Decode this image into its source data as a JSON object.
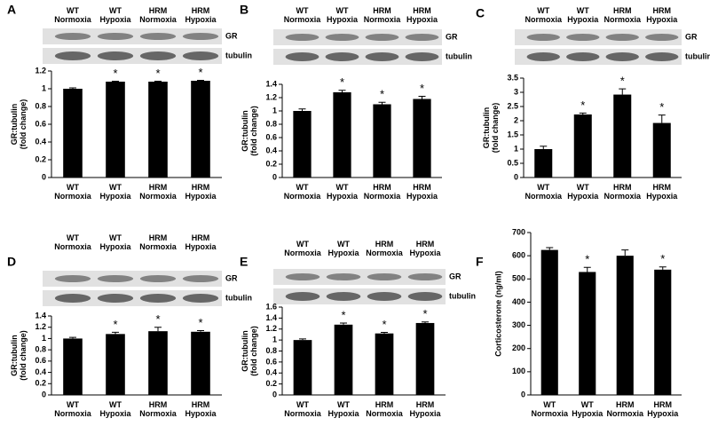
{
  "chart_data": [
    {
      "type": "bar",
      "label": "A",
      "blot_labels": [
        "GR",
        "tubulin"
      ],
      "y_label": "GR:tubulin\n(fold change)",
      "categories": [
        "WT\nNormoxia",
        "WT\nHypoxia",
        "HRM\nNormoxia",
        "HRM\nHypoxia"
      ],
      "values": [
        1.0,
        1.08,
        1.08,
        1.09
      ],
      "errors": [
        0.01,
        0.005,
        0.005,
        0.005
      ],
      "markers": [
        null,
        "*",
        "*",
        "*"
      ],
      "color": "#000000",
      "ylim": [
        0,
        1.2
      ],
      "yticks": [
        0,
        0.2,
        0.4,
        0.6,
        0.8,
        1,
        1.2
      ]
    },
    {
      "type": "bar",
      "label": "B",
      "blot_labels": [
        "GR",
        "tubulin"
      ],
      "y_label": "GR:tubulin\n(fold change)",
      "categories": [
        "WT\nNormoxia",
        "WT\nHypoxia",
        "HRM\nNormoxia",
        "HRM\nHypoxia"
      ],
      "values": [
        1.0,
        1.28,
        1.1,
        1.18
      ],
      "errors": [
        0.03,
        0.03,
        0.03,
        0.04
      ],
      "markers": [
        null,
        "*",
        "*",
        "*"
      ],
      "color": "#000000",
      "ylim": [
        0,
        1.4
      ],
      "yticks": [
        0,
        0.2,
        0.4,
        0.6,
        0.8,
        1,
        1.2,
        1.4
      ]
    },
    {
      "type": "bar",
      "label": "C",
      "blot_labels": [
        "GR",
        "tubulin"
      ],
      "y_label": "GR:tubulin\n(fold change)",
      "categories": [
        "WT\nNormoxia",
        "WT\nHypoxia",
        "HRM\nNormoxia",
        "HRM\nHypoxia"
      ],
      "values": [
        1.0,
        2.22,
        2.92,
        1.92
      ],
      "errors": [
        0.1,
        0.05,
        0.2,
        0.28
      ],
      "markers": [
        null,
        "*",
        "*",
        "*"
      ],
      "color": "#000000",
      "ylim": [
        0,
        3.5
      ],
      "yticks": [
        0,
        0.5,
        1,
        1.5,
        2,
        2.5,
        3,
        3.5
      ]
    },
    {
      "type": "bar",
      "label": "D",
      "blot_labels": [
        "GR",
        "tubulin"
      ],
      "y_label": "GR:tubulin\n(fold change)",
      "categories": [
        "WT\nNormoxia",
        "WT\nHypoxia",
        "HRM\nNormoxia",
        "HRM\nHypoxia"
      ],
      "values": [
        1.0,
        1.08,
        1.13,
        1.12
      ],
      "errors": [
        0.02,
        0.03,
        0.07,
        0.02
      ],
      "markers": [
        null,
        "*",
        "*",
        "*"
      ],
      "color": "#000000",
      "ylim": [
        0,
        1.4
      ],
      "yticks": [
        0,
        0.2,
        0.4,
        0.6,
        0.8,
        1,
        1.2,
        1.4
      ]
    },
    {
      "type": "bar",
      "label": "E",
      "blot_labels": [
        "GR",
        "tubulin"
      ],
      "y_label": "GR:tubulin\n(fold change)",
      "categories": [
        "WT\nNormoxia",
        "WT\nHypoxia",
        "HRM\nNormoxia",
        "HRM\nHypoxia"
      ],
      "values": [
        1.0,
        1.28,
        1.12,
        1.31
      ],
      "errors": [
        0.02,
        0.03,
        0.02,
        0.02
      ],
      "markers": [
        null,
        "*",
        "*",
        "*"
      ],
      "color": "#000000",
      "ylim": [
        0,
        1.6
      ],
      "yticks": [
        0,
        0.2,
        0.4,
        0.6,
        0.8,
        1,
        1.2,
        1.4,
        1.6
      ]
    },
    {
      "type": "bar",
      "label": "F",
      "y_label": "Corticosterone (ng/ml)",
      "categories": [
        "WT\nNormoxia",
        "WT\nHypoxia",
        "HRM\nNormoxia",
        "HRM\nHypoxia"
      ],
      "values": [
        625,
        530,
        600,
        540
      ],
      "errors": [
        10,
        20,
        25,
        12
      ],
      "markers": [
        null,
        "*",
        null,
        "*"
      ],
      "color": "#000000",
      "ylim": [
        0,
        700
      ],
      "yticks": [
        0,
        100,
        200,
        300,
        400,
        500,
        600,
        700
      ]
    }
  ]
}
